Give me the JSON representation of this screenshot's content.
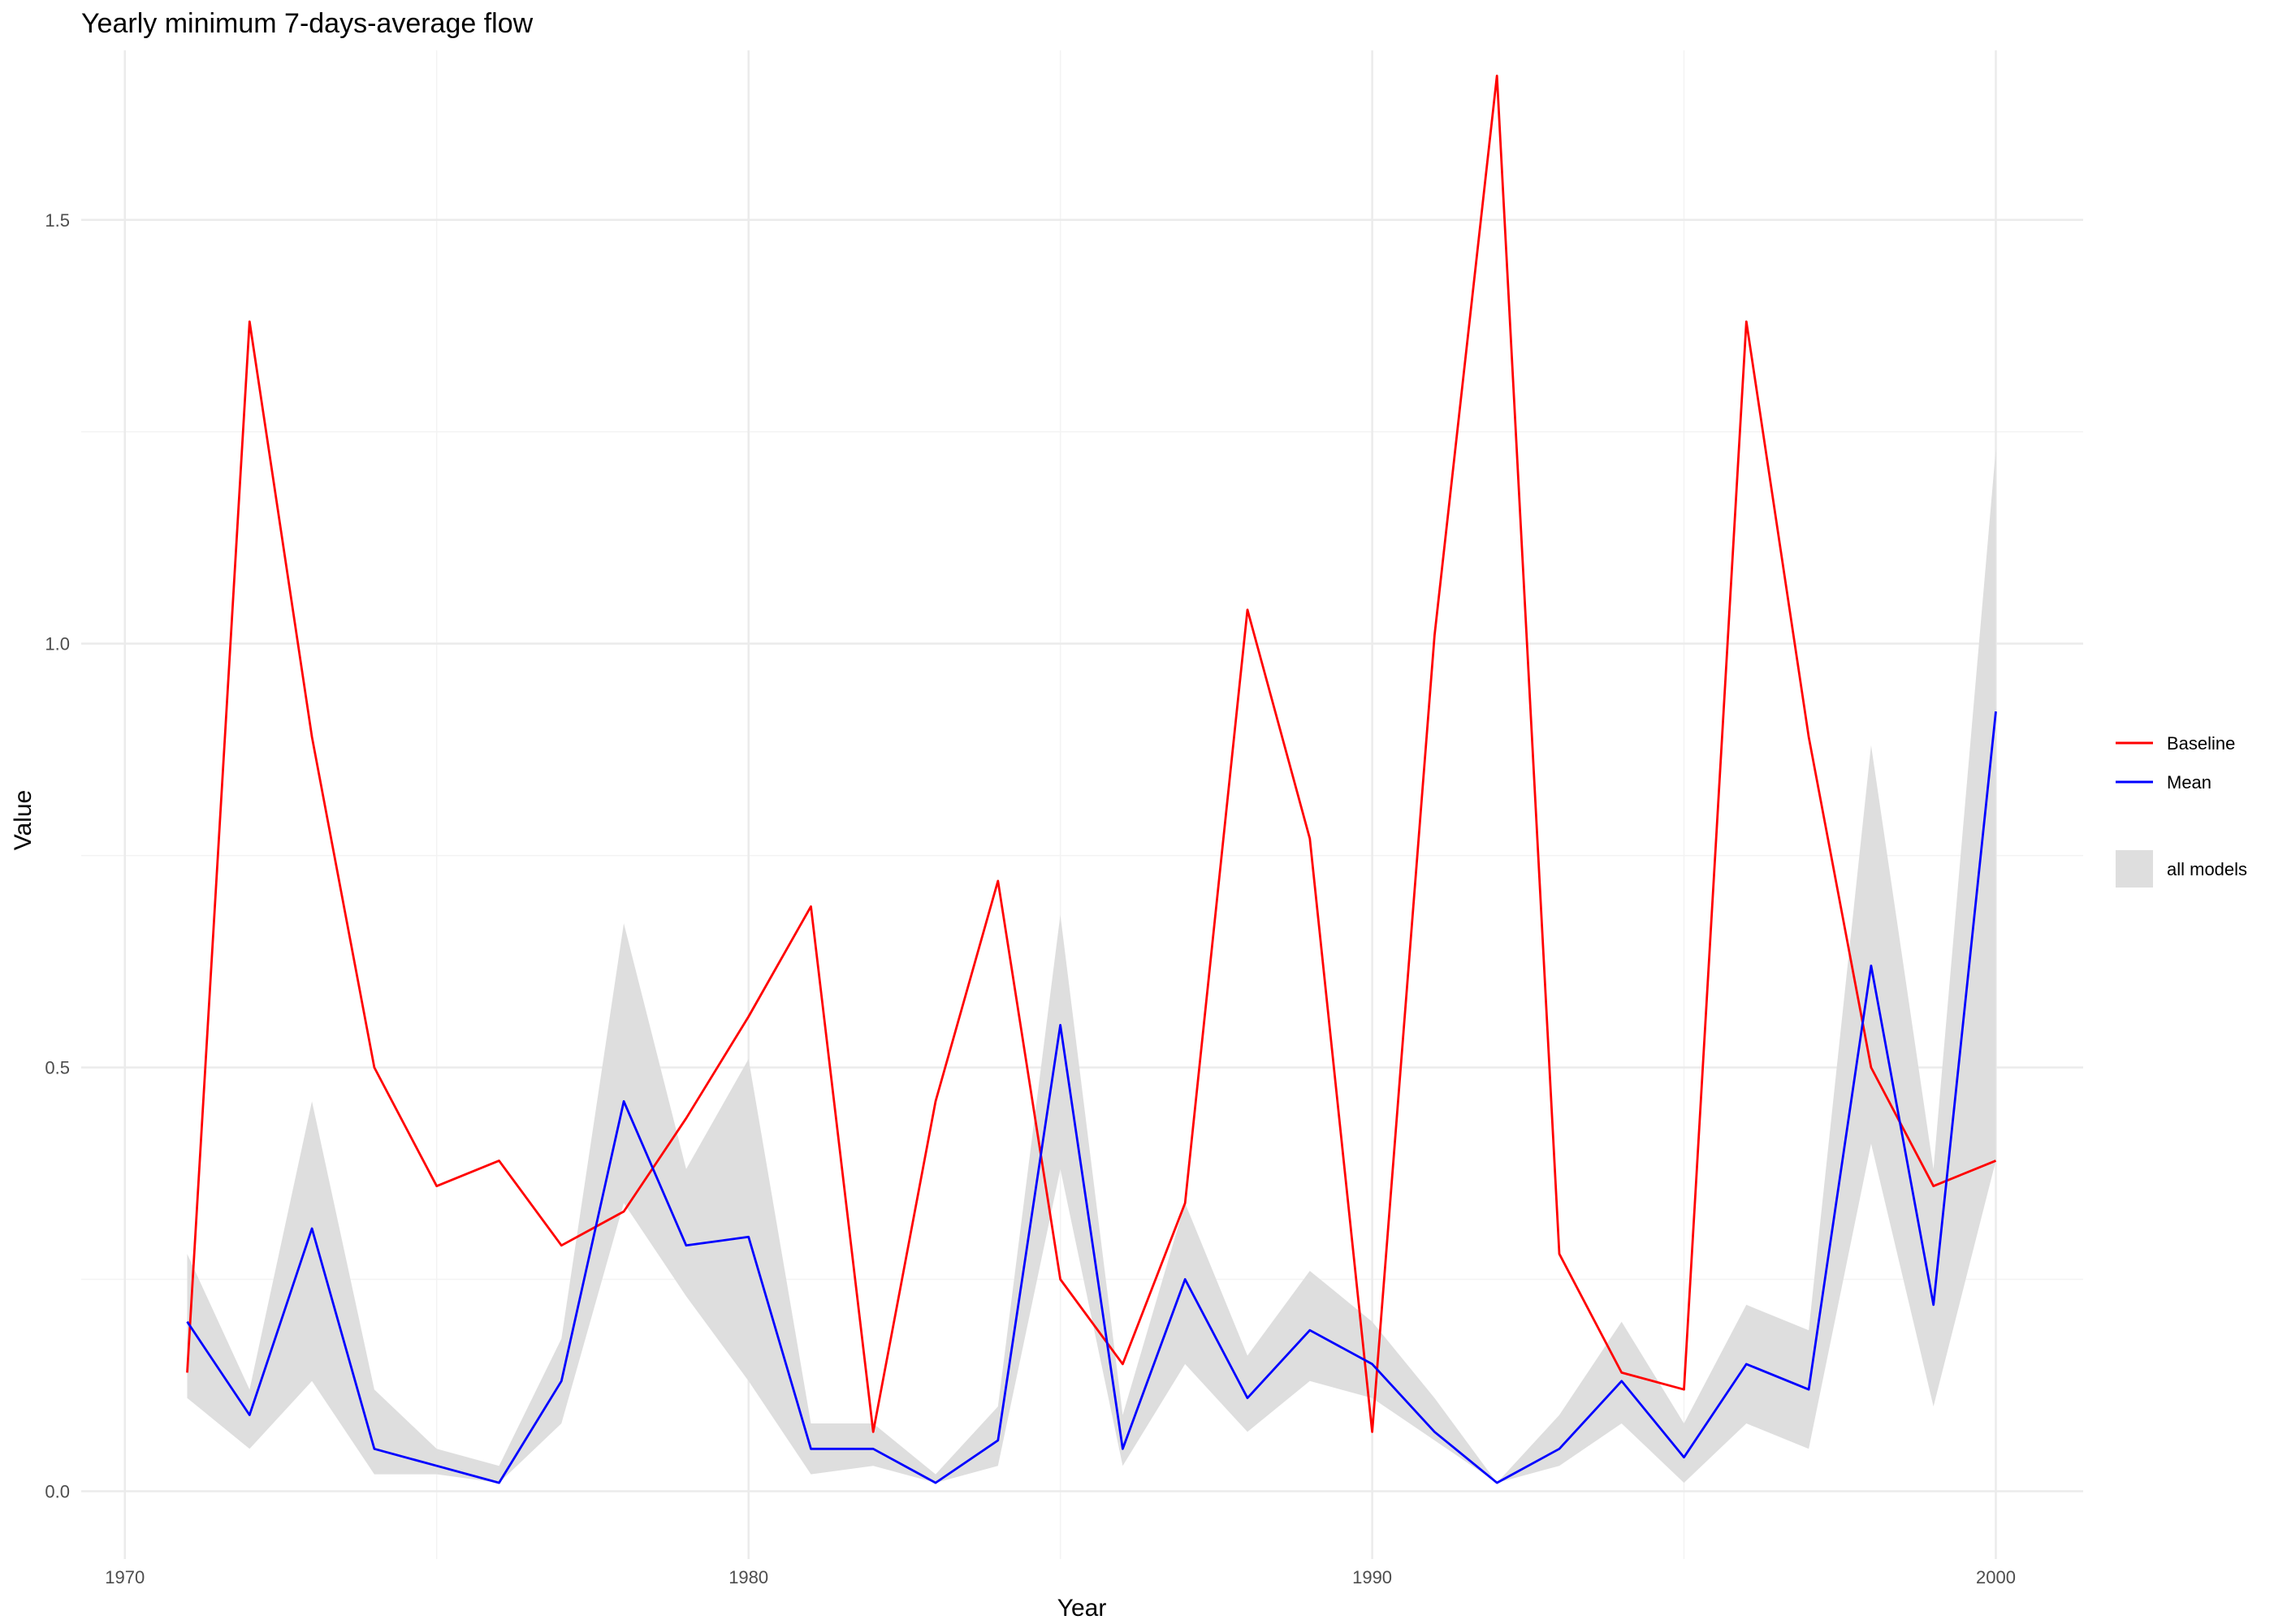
{
  "chart_data": {
    "type": "line",
    "title": "Yearly minimum 7-days-average flow",
    "xlabel": "Year",
    "ylabel": "Value",
    "xlim": [
      1969.3,
      2001.4
    ],
    "ylim": [
      -0.08,
      1.7
    ],
    "x_ticks": [
      1970,
      1980,
      1990,
      2000
    ],
    "y_ticks": [
      0.0,
      0.5,
      1.0,
      1.5
    ],
    "x_tick_labels": [
      "1970",
      "1980",
      "1990",
      "2000"
    ],
    "y_tick_labels": [
      "0.0",
      "0.5",
      "1.0",
      "1.5"
    ],
    "grid": true,
    "legend_position": "right",
    "x": [
      1971,
      1972,
      1973,
      1974,
      1975,
      1976,
      1977,
      1978,
      1979,
      1980,
      1981,
      1982,
      1983,
      1984,
      1985,
      1986,
      1987,
      1988,
      1989,
      1990,
      1991,
      1992,
      1993,
      1994,
      1995,
      1996,
      1997,
      1998,
      1999,
      2000
    ],
    "series": [
      {
        "name": "Baseline",
        "color": "#ff0000",
        "values": [
          0.14,
          1.38,
          0.89,
          0.5,
          0.36,
          0.39,
          0.29,
          0.33,
          0.44,
          0.56,
          0.69,
          0.07,
          0.46,
          0.72,
          0.25,
          0.15,
          0.34,
          1.04,
          0.77,
          0.07,
          1.01,
          1.67,
          0.28,
          0.14,
          0.12,
          1.38,
          0.89,
          0.5,
          0.36,
          0.39
        ]
      },
      {
        "name": "Mean",
        "color": "#0000ff",
        "values": [
          0.2,
          0.09,
          0.31,
          0.05,
          0.03,
          0.01,
          0.13,
          0.46,
          0.29,
          0.3,
          0.05,
          0.05,
          0.01,
          0.06,
          0.55,
          0.05,
          0.25,
          0.11,
          0.19,
          0.15,
          0.07,
          0.01,
          0.05,
          0.13,
          0.04,
          0.15,
          0.12,
          0.62,
          0.22,
          0.92
        ]
      }
    ],
    "ribbon": {
      "name": "all models",
      "color": "#dedede",
      "lower": [
        0.11,
        0.05,
        0.13,
        0.02,
        0.02,
        0.01,
        0.08,
        0.34,
        0.23,
        0.13,
        0.02,
        0.03,
        0.01,
        0.03,
        0.38,
        0.03,
        0.15,
        0.07,
        0.13,
        0.11,
        0.06,
        0.01,
        0.03,
        0.08,
        0.01,
        0.08,
        0.05,
        0.41,
        0.1,
        0.39
      ],
      "upper": [
        0.28,
        0.12,
        0.46,
        0.12,
        0.05,
        0.03,
        0.18,
        0.67,
        0.38,
        0.51,
        0.08,
        0.08,
        0.02,
        0.1,
        0.68,
        0.09,
        0.34,
        0.16,
        0.26,
        0.2,
        0.11,
        0.01,
        0.09,
        0.2,
        0.08,
        0.22,
        0.19,
        0.88,
        0.38,
        1.23
      ]
    }
  }
}
